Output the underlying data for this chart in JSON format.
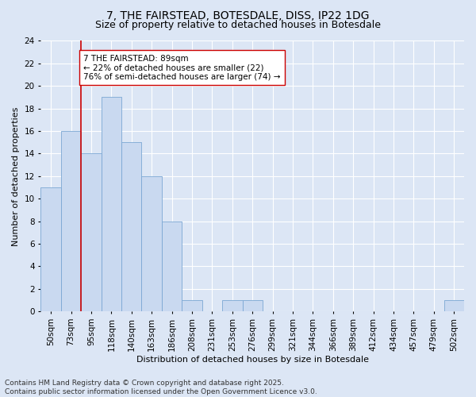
{
  "title_line1": "7, THE FAIRSTEAD, BOTESDALE, DISS, IP22 1DG",
  "title_line2": "Size of property relative to detached houses in Botesdale",
  "xlabel": "Distribution of detached houses by size in Botesdale",
  "ylabel": "Number of detached properties",
  "categories": [
    "50sqm",
    "73sqm",
    "95sqm",
    "118sqm",
    "140sqm",
    "163sqm",
    "186sqm",
    "208sqm",
    "231sqm",
    "253sqm",
    "276sqm",
    "299sqm",
    "321sqm",
    "344sqm",
    "366sqm",
    "389sqm",
    "412sqm",
    "434sqm",
    "457sqm",
    "479sqm",
    "502sqm"
  ],
  "values": [
    11,
    16,
    14,
    19,
    15,
    12,
    8,
    1,
    0,
    1,
    1,
    0,
    0,
    0,
    0,
    0,
    0,
    0,
    0,
    0,
    1
  ],
  "bar_color": "#c9d9f0",
  "bar_edge_color": "#7ba7d4",
  "background_color": "#dce6f5",
  "grid_color": "#ffffff",
  "ylim": [
    0,
    24
  ],
  "yticks": [
    0,
    2,
    4,
    6,
    8,
    10,
    12,
    14,
    16,
    18,
    20,
    22,
    24
  ],
  "vline_x": 1.5,
  "vline_color": "#cc0000",
  "annotation_text": "7 THE FAIRSTEAD: 89sqm\n← 22% of detached houses are smaller (22)\n76% of semi-detached houses are larger (74) →",
  "annotation_box_color": "#ffffff",
  "annotation_box_edge": "#cc0000",
  "footer_text": "Contains HM Land Registry data © Crown copyright and database right 2025.\nContains public sector information licensed under the Open Government Licence v3.0.",
  "title_fontsize": 10,
  "subtitle_fontsize": 9,
  "axis_label_fontsize": 8,
  "tick_fontsize": 7.5,
  "annotation_fontsize": 7.5,
  "footer_fontsize": 6.5
}
